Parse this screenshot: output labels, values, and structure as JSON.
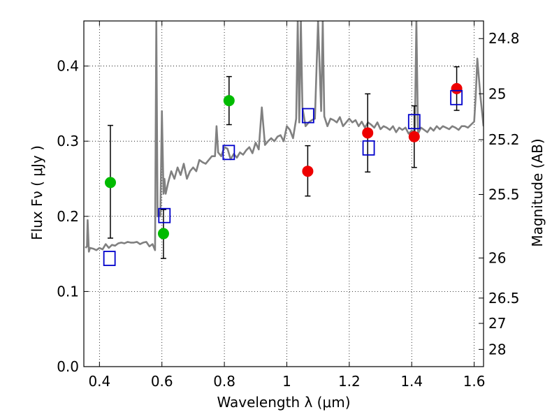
{
  "chart_data": {
    "type": "scatter",
    "xlabel": "Wavelength  λ (μm)",
    "ylabel": "Flux  Fν  ( μJy )",
    "ylabel2": "Magnitude (AB)",
    "xlim": [
      0.35,
      1.63
    ],
    "ylim": [
      0.0,
      0.46
    ],
    "grid": true,
    "x_ticks": [
      0.4,
      0.6,
      0.8,
      1.0,
      1.2,
      1.4,
      1.6
    ],
    "x_tick_labels": [
      "0.4",
      "0.6",
      "0.8",
      "1",
      "1.2",
      "1.4",
      "1.6"
    ],
    "y_ticks": [
      0.0,
      0.1,
      0.2,
      0.3,
      0.4
    ],
    "y_tick_labels": [
      "0.0",
      "0.1",
      "0.2",
      "0.3",
      "0.4"
    ],
    "mag_ticks": [
      24.8,
      25.0,
      25.2,
      25.5,
      26.0,
      26.5,
      27.0,
      28.0
    ],
    "mag_tick_labels": [
      "24.8",
      "25",
      "25.2",
      "25.5",
      "26",
      "26.5",
      "27",
      "28"
    ],
    "colors": {
      "spectrum": "#808080",
      "green": "#00bb00",
      "red": "#ee0000",
      "model": "#0000cc",
      "errorbar": "#000000"
    },
    "spectrum": {
      "x": [
        0.355,
        0.36,
        0.362,
        0.366,
        0.37,
        0.38,
        0.39,
        0.4,
        0.41,
        0.42,
        0.43,
        0.44,
        0.45,
        0.46,
        0.47,
        0.48,
        0.49,
        0.5,
        0.51,
        0.52,
        0.53,
        0.54,
        0.55,
        0.56,
        0.57,
        0.578,
        0.582,
        0.586,
        0.59,
        0.595,
        0.6,
        0.605,
        0.608,
        0.612,
        0.62,
        0.63,
        0.64,
        0.65,
        0.66,
        0.67,
        0.68,
        0.69,
        0.7,
        0.71,
        0.72,
        0.73,
        0.74,
        0.75,
        0.76,
        0.77,
        0.775,
        0.78,
        0.79,
        0.8,
        0.81,
        0.82,
        0.83,
        0.84,
        0.85,
        0.86,
        0.87,
        0.88,
        0.89,
        0.9,
        0.91,
        0.92,
        0.93,
        0.94,
        0.95,
        0.96,
        0.97,
        0.98,
        0.99,
        1.0,
        1.01,
        1.02,
        1.03,
        1.035,
        1.04,
        1.045,
        1.05,
        1.06,
        1.07,
        1.08,
        1.09,
        1.1,
        1.11,
        1.115,
        1.12,
        1.13,
        1.14,
        1.15,
        1.16,
        1.17,
        1.18,
        1.19,
        1.2,
        1.21,
        1.22,
        1.23,
        1.24,
        1.25,
        1.26,
        1.27,
        1.28,
        1.29,
        1.3,
        1.31,
        1.32,
        1.33,
        1.34,
        1.35,
        1.36,
        1.37,
        1.38,
        1.39,
        1.4,
        1.41,
        1.415,
        1.42,
        1.43,
        1.44,
        1.45,
        1.46,
        1.47,
        1.48,
        1.49,
        1.5,
        1.51,
        1.52,
        1.53,
        1.54,
        1.55,
        1.56,
        1.57,
        1.58,
        1.59,
        1.6,
        1.605,
        1.61,
        1.62,
        1.63
      ],
      "y": [
        0.158,
        0.16,
        0.195,
        0.153,
        0.158,
        0.157,
        0.155,
        0.158,
        0.156,
        0.163,
        0.158,
        0.162,
        0.161,
        0.164,
        0.165,
        0.164,
        0.166,
        0.165,
        0.165,
        0.166,
        0.163,
        0.165,
        0.166,
        0.16,
        0.163,
        0.155,
        0.46,
        0.2,
        0.205,
        0.2,
        0.34,
        0.23,
        0.25,
        0.23,
        0.245,
        0.26,
        0.25,
        0.265,
        0.255,
        0.27,
        0.25,
        0.26,
        0.265,
        0.26,
        0.275,
        0.272,
        0.27,
        0.275,
        0.28,
        0.28,
        0.32,
        0.285,
        0.28,
        0.292,
        0.29,
        0.276,
        0.283,
        0.278,
        0.285,
        0.282,
        0.288,
        0.292,
        0.284,
        0.298,
        0.289,
        0.345,
        0.295,
        0.3,
        0.304,
        0.3,
        0.306,
        0.308,
        0.3,
        0.32,
        0.315,
        0.304,
        0.33,
        0.46,
        0.325,
        0.46,
        0.345,
        0.32,
        0.325,
        0.328,
        0.33,
        0.46,
        0.34,
        0.46,
        0.333,
        0.32,
        0.33,
        0.328,
        0.325,
        0.332,
        0.32,
        0.325,
        0.33,
        0.325,
        0.328,
        0.32,
        0.326,
        0.318,
        0.325,
        0.322,
        0.318,
        0.325,
        0.316,
        0.32,
        0.318,
        0.315,
        0.32,
        0.312,
        0.318,
        0.315,
        0.318,
        0.31,
        0.314,
        0.312,
        0.46,
        0.31,
        0.318,
        0.315,
        0.312,
        0.318,
        0.314,
        0.32,
        0.316,
        0.32,
        0.318,
        0.316,
        0.32,
        0.318,
        0.315,
        0.32,
        0.32,
        0.318,
        0.322,
        0.326,
        0.36,
        0.41,
        0.36,
        0.32
      ]
    },
    "series": [
      {
        "marker": "circle",
        "color": "green",
        "x": [
          0.435,
          0.605,
          0.815
        ],
        "y": [
          0.245,
          0.177,
          0.354
        ],
        "yerr_low": [
          0.171,
          0.144,
          0.322
        ],
        "yerr_high": [
          0.321,
          0.209,
          0.386
        ]
      },
      {
        "marker": "circle",
        "color": "red",
        "x": [
          1.067,
          1.259,
          1.408,
          1.544
        ],
        "y": [
          0.26,
          0.311,
          0.306,
          0.37
        ],
        "yerr_low": [
          0.227,
          0.259,
          0.265,
          0.341
        ],
        "yerr_high": [
          0.294,
          0.363,
          0.347,
          0.399
        ]
      },
      {
        "marker": "square",
        "color": "model",
        "x": [
          0.432,
          0.608,
          0.814,
          1.068,
          1.262,
          1.408,
          1.543
        ],
        "y": [
          0.144,
          0.201,
          0.285,
          0.334,
          0.291,
          0.326,
          0.358
        ]
      }
    ]
  }
}
